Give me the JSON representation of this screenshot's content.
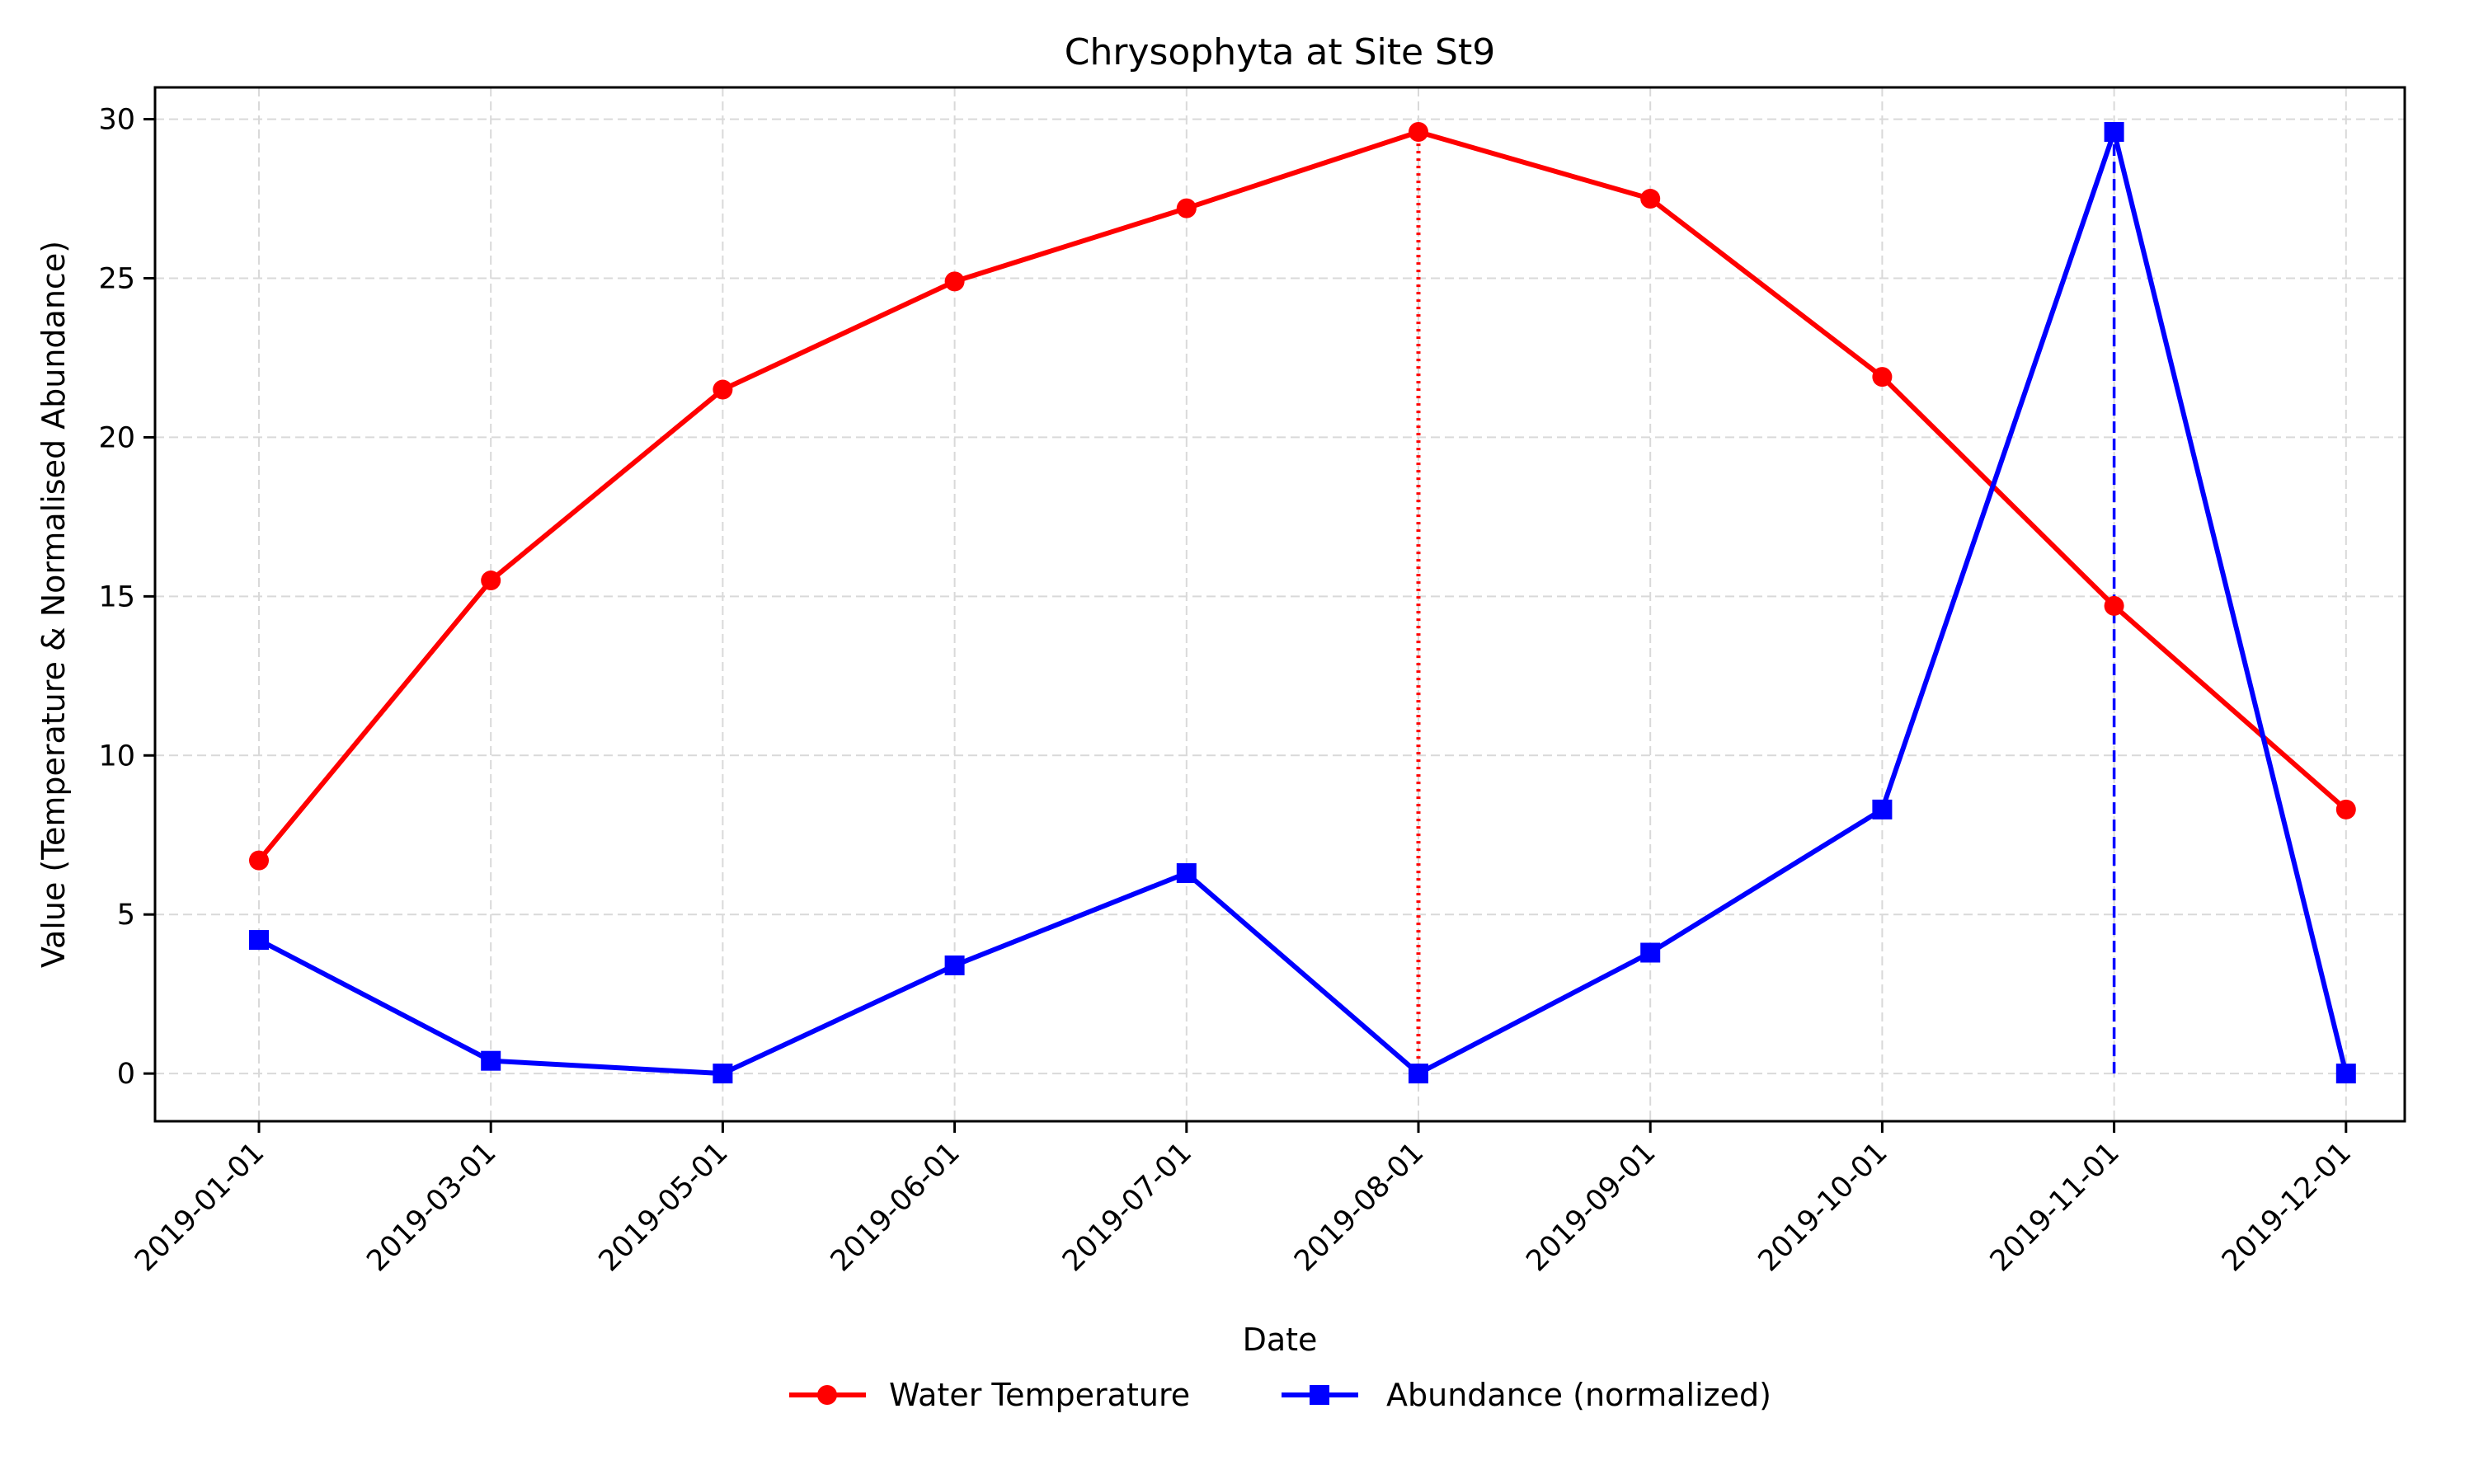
{
  "chart_data": {
    "type": "line",
    "title": "Chrysophyta at Site St9",
    "xlabel": "Date",
    "ylabel": "Value (Temperature & Normalised Abundance)",
    "x": [
      "2019-01-01",
      "2019-03-01",
      "2019-05-01",
      "2019-06-01",
      "2019-07-01",
      "2019-08-01",
      "2019-09-01",
      "2019-10-01",
      "2019-11-01",
      "2019-12-01"
    ],
    "ylim": [
      -1.5,
      31.0
    ],
    "yticks": [
      0,
      5,
      10,
      15,
      20,
      25,
      30
    ],
    "grid": true,
    "legend_position": "bottom-center",
    "series": [
      {
        "name": "Water Temperature",
        "color": "#ff0000",
        "marker": "circle",
        "values": [
          6.7,
          15.5,
          21.5,
          24.9,
          27.2,
          29.6,
          27.5,
          21.9,
          14.7,
          8.3
        ]
      },
      {
        "name": "Abundance (normalized)",
        "color": "#0000ff",
        "marker": "square",
        "values": [
          4.2,
          0.4,
          0.0,
          3.4,
          6.3,
          0.0,
          3.8,
          8.3,
          29.6,
          0.0
        ]
      }
    ],
    "annotations": [
      {
        "type": "vline",
        "x": "2019-08-01",
        "from": 0.0,
        "to": 29.6,
        "color": "#ff0000",
        "style": "dotted"
      },
      {
        "type": "vline",
        "x": "2019-11-01",
        "from": 0.0,
        "to": 29.6,
        "color": "#0000ff",
        "style": "dashed"
      }
    ]
  }
}
